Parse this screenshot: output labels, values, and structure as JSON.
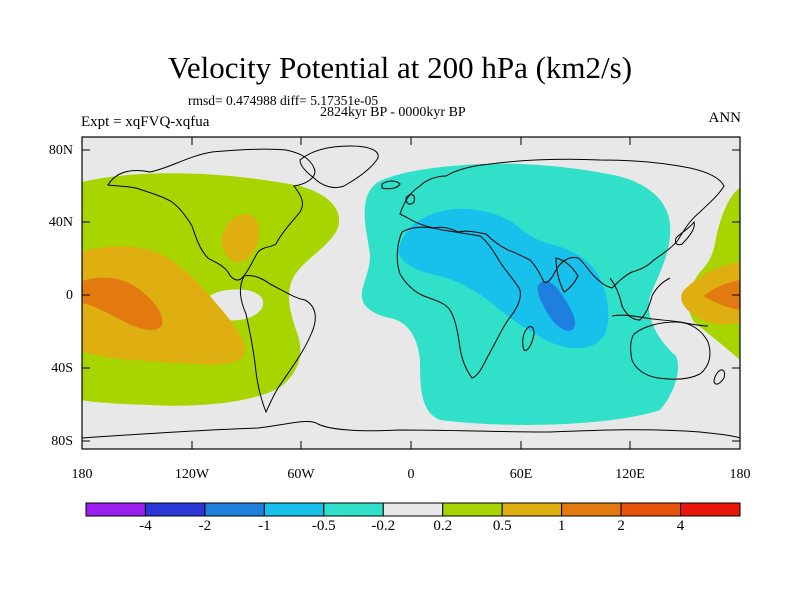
{
  "title": "Velocity Potential at 200 hPa (km2/s)",
  "stats_text": "rmsd= 0.474988 diff= 5.17351e-05",
  "period_text": "2824kyr BP - 0000kyr BP",
  "experiment_text": "Expt = xqFVQ-xqfua",
  "season": "ANN",
  "lat_labels": [
    "80N",
    "40N",
    "0",
    "40S",
    "80S"
  ],
  "lon_labels": [
    "180",
    "120W",
    "60W",
    "0",
    "60E",
    "120E",
    "180"
  ],
  "colorbar": {
    "labels": [
      "-4",
      "-2",
      "-1",
      "-0.5",
      "-0.2",
      "0.2",
      "0.5",
      "1",
      "2",
      "4"
    ],
    "colors": [
      "#9a1ef0",
      "#2a36d6",
      "#1f7fde",
      "#18c1ec",
      "#30e0c8",
      "#e8e8e8",
      "#a8d400",
      "#dfae10",
      "#e37a10",
      "#e8520a",
      "#e8160a"
    ]
  },
  "palette": {
    "ocean_neutral": "#e8e8e8",
    "light_green": "#a8d400",
    "gold": "#dfae10",
    "orange": "#e37a10",
    "teal": "#30e0c8",
    "cyan": "#18c1ec",
    "blue": "#1f7fde",
    "coast": "#000000"
  }
}
